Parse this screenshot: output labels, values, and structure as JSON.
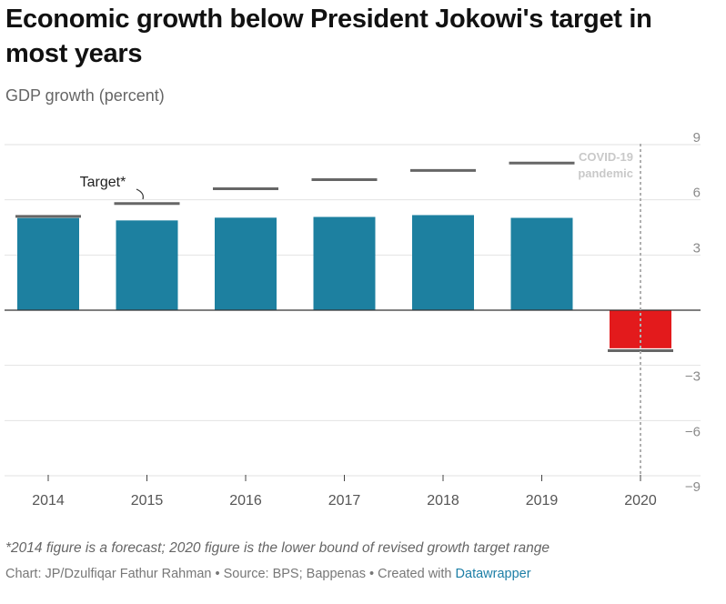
{
  "header": {
    "title": "Economic growth below President Jokowi's target in most years",
    "subtitle": "GDP growth (percent)"
  },
  "footer": {
    "notes": "*2014 figure is a forecast; 2020 figure is the lower bound of revised growth target range",
    "credits_prefix": "Chart: JP/Dzulfiqar Fathur Rahman • Source: BPS; Bappenas • Created with ",
    "credits_link": "Datawrapper"
  },
  "chart_data": {
    "type": "bar",
    "categories": [
      "2014",
      "2015",
      "2016",
      "2017",
      "2018",
      "2019",
      "2020"
    ],
    "series": [
      {
        "values": [
          5.01,
          4.88,
          5.03,
          5.07,
          5.17,
          5.02,
          -2.07
        ]
      },
      {
        "name": "Target*",
        "values": [
          5.1,
          5.8,
          6.6,
          7.1,
          7.6,
          8.0,
          -2.2
        ]
      }
    ],
    "ylim": [
      -9,
      9
    ],
    "y_ticks": [
      9,
      6,
      3,
      0,
      -3,
      -6,
      -9
    ],
    "y_tick_labels": [
      "9",
      "6",
      "3",
      "",
      "−3",
      "−6",
      "−9"
    ],
    "grid": true,
    "bar_colors": {
      "positive": "#1d80a0",
      "negative": "#e31a1c"
    },
    "target_color": "#666666",
    "annotations": {
      "target_label": "Target*",
      "event_label_line1": "COVID-19",
      "event_label_line2": "pandemic",
      "event_at": "2020"
    }
  }
}
